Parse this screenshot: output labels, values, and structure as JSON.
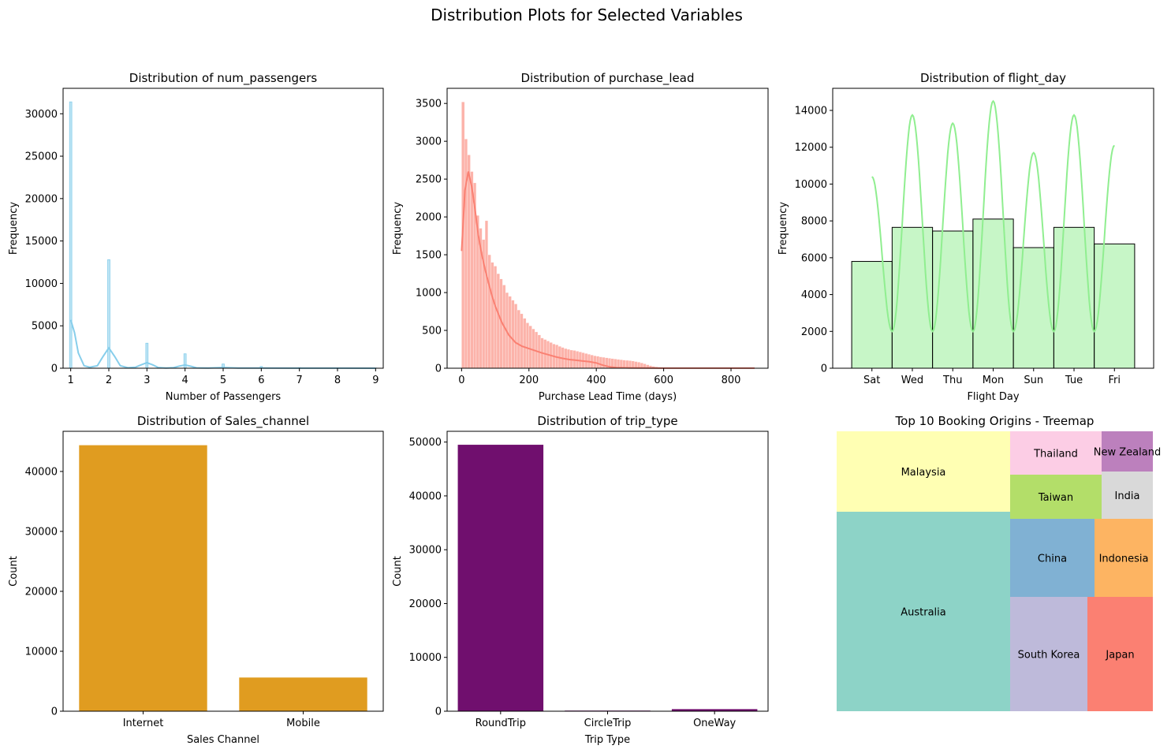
{
  "figure": {
    "suptitle": "Distribution Plots for Selected Variables"
  },
  "chart_data": [
    {
      "id": "num_passengers",
      "type": "histogram",
      "title": "Distribution of num_passengers",
      "xlabel": "Number of Passengers",
      "ylabel": "Frequency",
      "xlim": [
        0.8,
        9.2
      ],
      "ylim": [
        0,
        33000
      ],
      "xticks": [
        1,
        2,
        3,
        4,
        5,
        6,
        7,
        8,
        9
      ],
      "yticks": [
        0,
        5000,
        10000,
        15000,
        20000,
        25000,
        30000
      ],
      "color": "#87ceeb",
      "bars": [
        {
          "x": 1,
          "value": 31400
        },
        {
          "x": 2,
          "value": 12800
        },
        {
          "x": 3,
          "value": 2950
        },
        {
          "x": 4,
          "value": 1700
        },
        {
          "x": 5,
          "value": 500
        },
        {
          "x": 6,
          "value": 200
        },
        {
          "x": 7,
          "value": 80
        },
        {
          "x": 8,
          "value": 50
        },
        {
          "x": 9,
          "value": 30
        }
      ],
      "kde": {
        "x": [
          1.0,
          1.1,
          1.2,
          1.35,
          1.5,
          1.7,
          1.85,
          2.0,
          2.15,
          2.3,
          2.5,
          2.7,
          2.85,
          3.0,
          3.15,
          3.3,
          3.5,
          3.7,
          3.85,
          4.0,
          4.15,
          4.3,
          4.6,
          5.0,
          5.4,
          6.0,
          7.0,
          8.0,
          9.0
        ],
        "y": [
          5700,
          4200,
          1800,
          300,
          120,
          300,
          1400,
          2400,
          1400,
          300,
          60,
          120,
          400,
          650,
          400,
          80,
          20,
          70,
          250,
          380,
          230,
          50,
          20,
          80,
          15,
          30,
          10,
          5,
          3
        ]
      }
    },
    {
      "id": "purchase_lead",
      "type": "histogram",
      "title": "Distribution of purchase_lead",
      "xlabel": "Purchase Lead Time (days)",
      "ylabel": "Frequency",
      "xlim": [
        -43,
        910
      ],
      "ylim": [
        0,
        3700
      ],
      "xticks": [
        0,
        200,
        400,
        600,
        800
      ],
      "yticks": [
        0,
        500,
        1000,
        1500,
        2000,
        2500,
        3000,
        3500
      ],
      "color": "#fa8072",
      "bin_width": 8.7,
      "values": [
        3520,
        3030,
        2820,
        2600,
        2450,
        2020,
        1850,
        1700,
        1950,
        1500,
        1400,
        1350,
        1250,
        1180,
        1100,
        1000,
        950,
        900,
        850,
        770,
        720,
        660,
        600,
        560,
        520,
        480,
        440,
        400,
        380,
        360,
        340,
        320,
        310,
        290,
        275,
        260,
        250,
        240,
        235,
        225,
        215,
        205,
        195,
        185,
        175,
        165,
        158,
        150,
        145,
        138,
        132,
        127,
        122,
        117,
        113,
        108,
        104,
        100,
        95,
        88,
        80,
        70,
        58,
        46,
        34,
        25,
        18,
        13,
        10,
        8,
        6,
        5,
        4,
        4,
        3,
        3,
        2,
        2,
        2,
        2,
        1,
        1,
        1,
        1,
        1,
        1,
        1,
        1,
        1,
        1,
        1,
        1,
        1,
        1,
        1,
        1,
        1,
        1,
        1,
        1
      ],
      "kde": {
        "x": [
          0,
          10,
          20,
          30,
          40,
          50,
          60,
          70,
          80,
          90,
          100,
          120,
          140,
          160,
          180,
          200,
          220,
          240,
          260,
          280,
          300,
          320,
          340,
          360,
          380,
          400,
          420,
          440,
          460,
          500,
          550,
          600,
          700,
          800,
          870
        ],
        "y": [
          1550,
          2350,
          2600,
          2400,
          2100,
          1750,
          1500,
          1300,
          1130,
          960,
          820,
          600,
          440,
          340,
          290,
          260,
          230,
          200,
          175,
          150,
          130,
          115,
          105,
          95,
          85,
          70,
          40,
          18,
          8,
          4,
          2,
          1,
          1,
          1,
          1
        ]
      }
    },
    {
      "id": "flight_day",
      "type": "histogram",
      "title": "Distribution of flight_day",
      "xlabel": "Flight Day",
      "ylabel": "Frequency",
      "xlim": [
        -0.97,
        6.97
      ],
      "ylim": [
        0,
        15200
      ],
      "yticks": [
        0,
        2000,
        4000,
        6000,
        8000,
        10000,
        12000,
        14000
      ],
      "color": "#90ee90",
      "categories": [
        "Sat",
        "Wed",
        "Thu",
        "Mon",
        "Sun",
        "Tue",
        "Fri"
      ],
      "values": [
        5800,
        7650,
        7450,
        8100,
        6550,
        7650,
        6750
      ],
      "kde_peaks": [
        10400,
        13750,
        13300,
        14500,
        11700,
        13750,
        12100
      ],
      "kde_trough": 2000
    },
    {
      "id": "sales_channel",
      "type": "bar",
      "title": "Distribution of Sales_channel",
      "xlabel": "Sales Channel",
      "ylabel": "Count",
      "ylim": [
        0,
        46700
      ],
      "yticks": [
        0,
        10000,
        20000,
        30000,
        40000
      ],
      "color": "#e09c20",
      "categories": [
        "Internet",
        "Mobile"
      ],
      "values": [
        44380,
        5620
      ]
    },
    {
      "id": "trip_type",
      "type": "bar",
      "title": "Distribution of trip_type",
      "xlabel": "Trip Type",
      "ylabel": "Count",
      "ylim": [
        0,
        52000
      ],
      "yticks": [
        0,
        10000,
        20000,
        30000,
        40000,
        50000
      ],
      "color": "#700f6e",
      "categories": [
        "RoundTrip",
        "CircleTrip",
        "OneWay"
      ],
      "values": [
        49500,
        116,
        387
      ]
    },
    {
      "id": "booking_origins",
      "type": "treemap",
      "title": "Top 10 Booking Origins - Treemap",
      "items": [
        {
          "label": "Australia",
          "color": "#8dd3c7"
        },
        {
          "label": "Malaysia",
          "color": "#ffffb3"
        },
        {
          "label": "South Korea",
          "color": "#bebada"
        },
        {
          "label": "Japan",
          "color": "#fb8072"
        },
        {
          "label": "China",
          "color": "#80b1d3"
        },
        {
          "label": "Indonesia",
          "color": "#fdb462"
        },
        {
          "label": "Taiwan",
          "color": "#b3de69"
        },
        {
          "label": "India",
          "color": "#d9d9d9"
        },
        {
          "label": "Thailand",
          "color": "#fccde5"
        },
        {
          "label": "New Zealand",
          "color": "#bc80bd"
        }
      ]
    }
  ]
}
